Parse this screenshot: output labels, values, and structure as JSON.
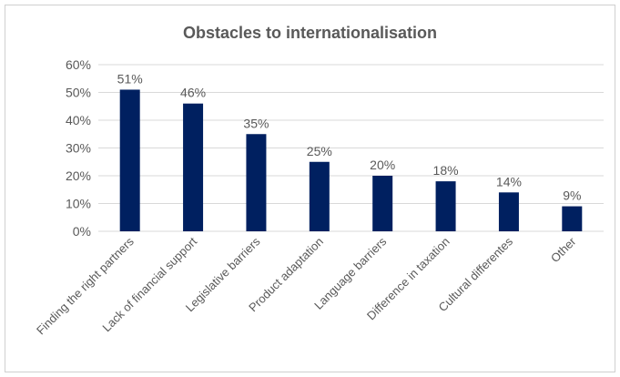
{
  "chart_data": {
    "type": "bar",
    "title": "Obstacles to internationalisation",
    "categories": [
      "Finding the right partners",
      "Lack of financial support",
      "Legislative barriers",
      "Product adaptation",
      "Language barriers",
      "Difference in taxation",
      "Cultural differentes",
      "Other"
    ],
    "values": [
      51,
      46,
      35,
      25,
      20,
      18,
      14,
      9
    ],
    "value_labels": [
      "51%",
      "46%",
      "35%",
      "25%",
      "20%",
      "18%",
      "14%",
      "9%"
    ],
    "ylim": [
      0,
      60
    ],
    "yticks": [
      0,
      10,
      20,
      30,
      40,
      50,
      60
    ],
    "ytick_labels": [
      "0%",
      "10%",
      "20%",
      "30%",
      "40%",
      "50%",
      "60%"
    ],
    "xlabel": "",
    "ylabel": "",
    "grid": true,
    "bar_color": "#002060",
    "gridline_color": "#d9d9d9",
    "text_color": "#595959"
  }
}
